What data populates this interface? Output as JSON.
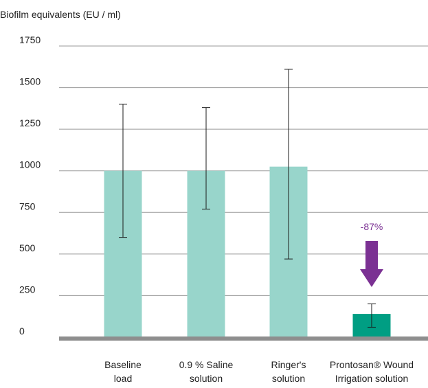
{
  "chart_data": {
    "type": "bar",
    "title": "",
    "ylabel": "Biofilm equivalents (EU / ml)",
    "xlabel": "",
    "ylim": [
      0,
      1750
    ],
    "yticks": [
      0,
      250,
      500,
      750,
      1000,
      1250,
      1500,
      1750
    ],
    "grid": true,
    "categories": [
      [
        "Baseline",
        "load"
      ],
      [
        "0.9 % Saline",
        "solution"
      ],
      [
        "Ringer's",
        "solution"
      ],
      [
        "Prontosan® Wound",
        "Irrigation solution"
      ]
    ],
    "values": [
      1000,
      1000,
      1025,
      140
    ],
    "error_low": [
      600,
      770,
      470,
      60
    ],
    "error_high": [
      1400,
      1380,
      1610,
      200
    ],
    "annotation": {
      "text": "-87%",
      "category_index": 3
    }
  },
  "colors": {
    "bar": "#98d5cb",
    "bar_highlight": "#009e83",
    "arrow": "#7b3193",
    "grid": "#9a9a9a",
    "baseline": "#8e8e8e",
    "text": "#222222",
    "error": "#1a1a1a"
  }
}
